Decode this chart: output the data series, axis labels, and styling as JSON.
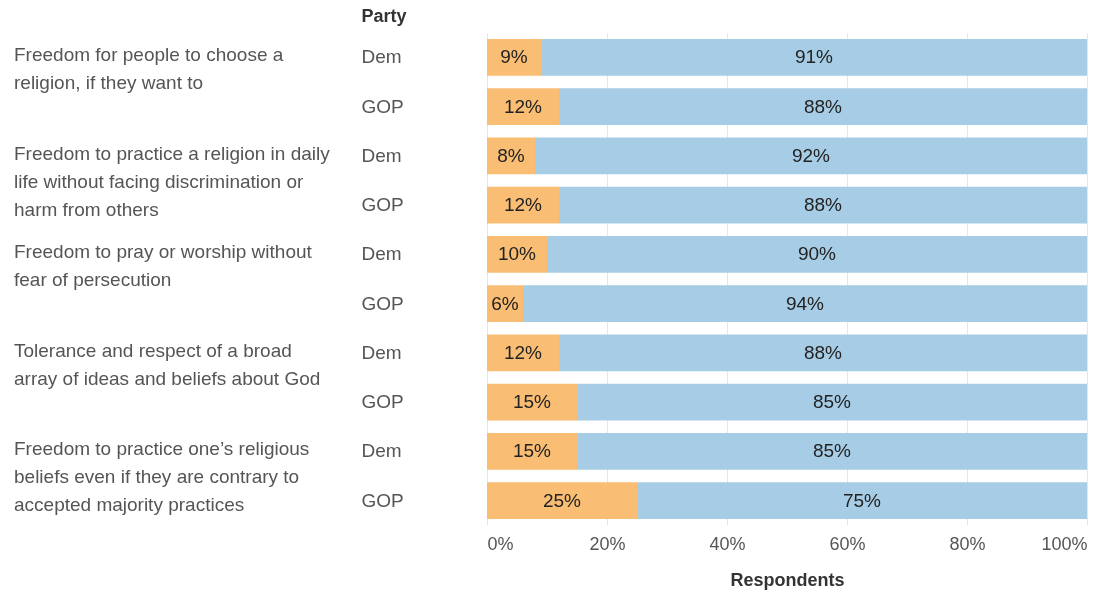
{
  "chart_data": {
    "type": "bar",
    "orientation": "horizontal",
    "stacked": true,
    "ylabel": "Party",
    "xlabel": "Respondents",
    "categories": [
      "Dem",
      "GOP",
      "Dem",
      "GOP",
      "Dem",
      "GOP",
      "Dem",
      "GOP",
      "Dem",
      "GOP"
    ],
    "annotations": [
      "Freedom for people to choose a religion, if they want to",
      "Freedom to practice a religion in daily life without facing discrimination or harm from others",
      "Freedom to pray or worship without fear of persecution",
      "Tolerance and respect of a broad array of ideas and beliefs about God",
      "Freedom to practice one’s religious beliefs even if they are contrary to accepted majority practices"
    ],
    "series": [
      {
        "color": "#f9be73",
        "values": [
          9,
          12,
          8,
          12,
          10,
          6,
          12,
          15,
          15,
          25
        ],
        "value_labels": [
          "9%",
          "12%",
          "8%",
          "12%",
          "10%",
          "6%",
          "12%",
          "15%",
          "15%",
          "25%"
        ]
      },
      {
        "color": "#a7cde6",
        "values": [
          91,
          88,
          92,
          88,
          90,
          94,
          88,
          85,
          85,
          75
        ],
        "value_labels": [
          "91%",
          "88%",
          "92%",
          "88%",
          "90%",
          "94%",
          "88%",
          "85%",
          "85%",
          "75%"
        ]
      }
    ],
    "xlim": [
      0,
      100
    ],
    "xticks": [
      {
        "value": 0,
        "label": "0%"
      },
      {
        "value": 20,
        "label": "20%"
      },
      {
        "value": 40,
        "label": "40%"
      },
      {
        "value": 60,
        "label": "60%"
      },
      {
        "value": 80,
        "label": "80%"
      },
      {
        "value": 100,
        "label": "100%"
      }
    ],
    "grid": "x",
    "legend": false
  }
}
